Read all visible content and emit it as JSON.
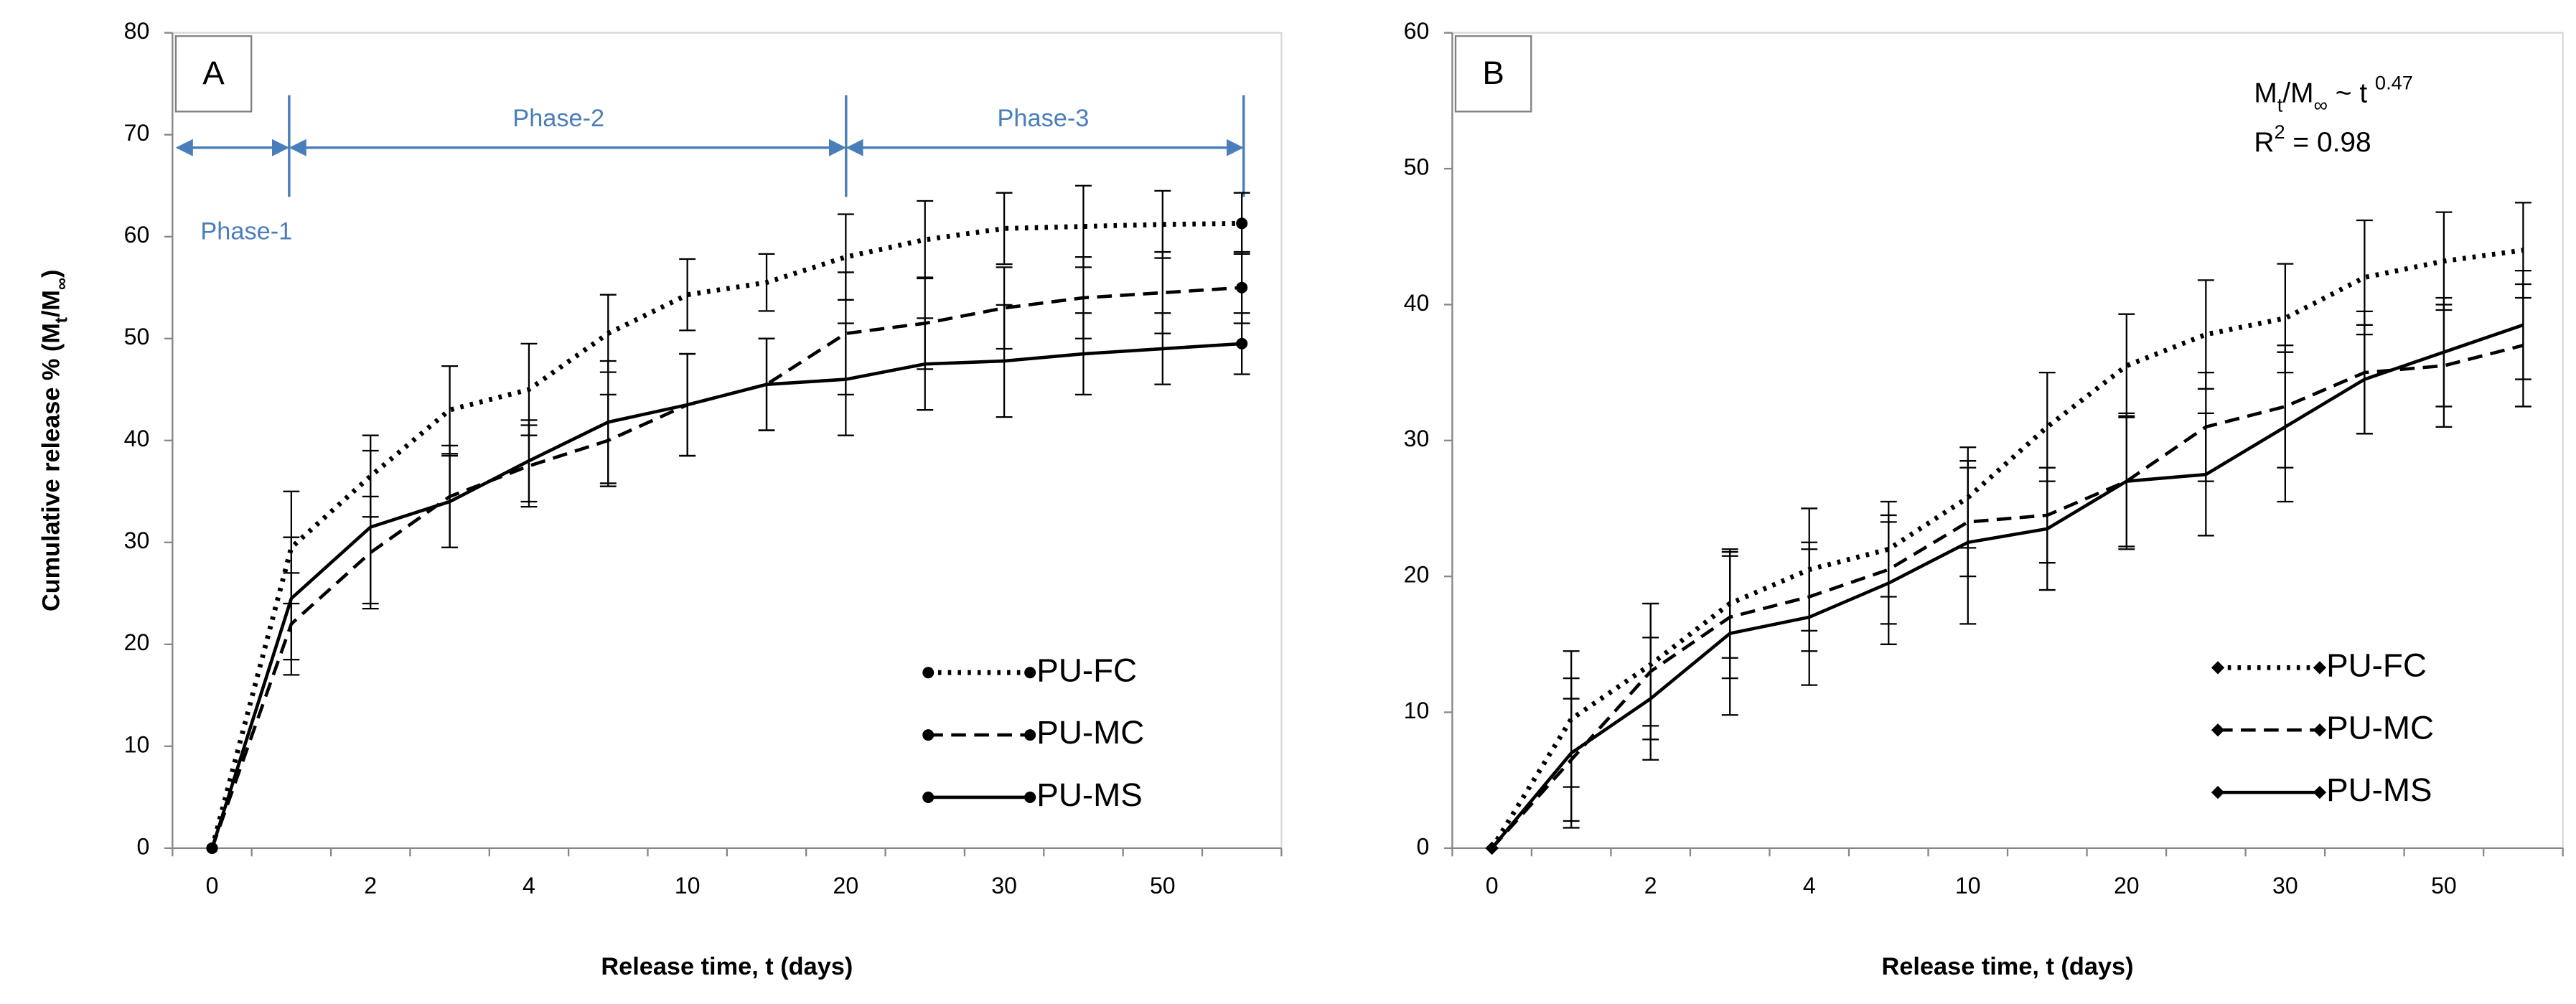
{
  "chart_data": [
    {
      "type": "line",
      "panel_label": "A",
      "y_label_parts": [
        "Cumulative release % (M",
        "t",
        "/M",
        "∞",
        ")"
      ],
      "x_label": "Release time, t (days)",
      "categories": [
        "0",
        null,
        "2",
        null,
        "4",
        null,
        "10",
        null,
        "20",
        null,
        "30",
        null,
        "50",
        null
      ],
      "ylim": [
        0,
        80
      ],
      "yticks": [
        0,
        10,
        20,
        30,
        40,
        50,
        60,
        70,
        80
      ],
      "annotations": [
        "Phase-1",
        "Phase-2",
        "Phase-3"
      ],
      "legend": "lower right",
      "series": [
        {
          "name": "PU-FC",
          "color": "#000000",
          "style": "dotted",
          "marker": "circle",
          "values": [
            0,
            29.5,
            36.5,
            43,
            45,
            50.5,
            54.3,
            55.5,
            58,
            59.7,
            60.8,
            61,
            61.2,
            61.3
          ],
          "errors": [
            0,
            5.5,
            4,
            4.3,
            4.5,
            3.8,
            3.5,
            2.8,
            4.2,
            3.8,
            3.5,
            4,
            3.3,
            3
          ]
        },
        {
          "name": "PU-MC",
          "color": "#000000",
          "style": "dashed",
          "marker": "circle",
          "values": [
            0,
            22,
            29,
            34.5,
            37.5,
            40,
            43.5,
            45.5,
            50.5,
            51.5,
            53,
            54,
            54.5,
            55
          ],
          "errors": [
            0,
            5,
            5.5,
            5,
            4,
            4.5,
            5,
            4.5,
            6,
            4.5,
            4,
            4,
            4,
            3.5
          ]
        },
        {
          "name": "PU-MS",
          "color": "#000000",
          "style": "solid",
          "marker": "circle",
          "values": [
            0,
            24.5,
            31.5,
            34,
            38,
            41.8,
            43.5,
            45.5,
            46,
            47.5,
            47.8,
            48.5,
            49,
            49.5
          ],
          "errors": [
            0,
            6,
            7.5,
            4.5,
            4,
            6,
            5,
            4.5,
            5.5,
            4.5,
            5.5,
            4,
            3.5,
            3
          ]
        }
      ]
    },
    {
      "type": "line",
      "panel_label": "B",
      "x_label": "Release time, t (days)",
      "categories": [
        "0",
        null,
        "2",
        null,
        "4",
        null,
        "10",
        null,
        "20",
        null,
        "30",
        null,
        "50",
        null
      ],
      "ylim": [
        0,
        60
      ],
      "yticks": [
        0,
        10,
        20,
        30,
        40,
        50,
        60
      ],
      "equation_parts": [
        "M",
        "t",
        "/M",
        "∞",
        " ~  t ",
        "0.47"
      ],
      "r2_parts": [
        "R",
        "2",
        " = 0.98"
      ],
      "legend": "lower right",
      "series": [
        {
          "name": "PU-FC",
          "color": "#000000",
          "style": "dotted",
          "marker": "diamond",
          "values": [
            0,
            9.5,
            13.5,
            18,
            20.5,
            22,
            25.8,
            31,
            35.5,
            37.8,
            39,
            42,
            43.2,
            44
          ],
          "errors": [
            0,
            5,
            4.5,
            4,
            4.5,
            3.5,
            3.7,
            4,
            3.8,
            4,
            4,
            4.2,
            3.6,
            3.5
          ]
        },
        {
          "name": "PU-MC",
          "color": "#000000",
          "style": "dashed",
          "marker": "diamond",
          "values": [
            0,
            6.5,
            13,
            17,
            18.5,
            20.5,
            24,
            24.5,
            27,
            31,
            32.5,
            35,
            35.5,
            37
          ],
          "errors": [
            0,
            4.5,
            5,
            4.5,
            4,
            4,
            4,
            3.5,
            4.8,
            4,
            4.5,
            4.5,
            4.5,
            4.5
          ]
        },
        {
          "name": "PU-MS",
          "color": "#000000",
          "style": "solid",
          "marker": "diamond",
          "values": [
            0,
            7,
            11,
            15.8,
            17,
            19.5,
            22.5,
            23.5,
            27,
            27.5,
            31,
            34.5,
            36.5,
            38.5
          ],
          "errors": [
            0,
            5.5,
            4.5,
            6,
            5,
            4.5,
            6,
            4.5,
            5,
            4.5,
            5.5,
            4,
            4,
            4
          ]
        }
      ]
    }
  ]
}
